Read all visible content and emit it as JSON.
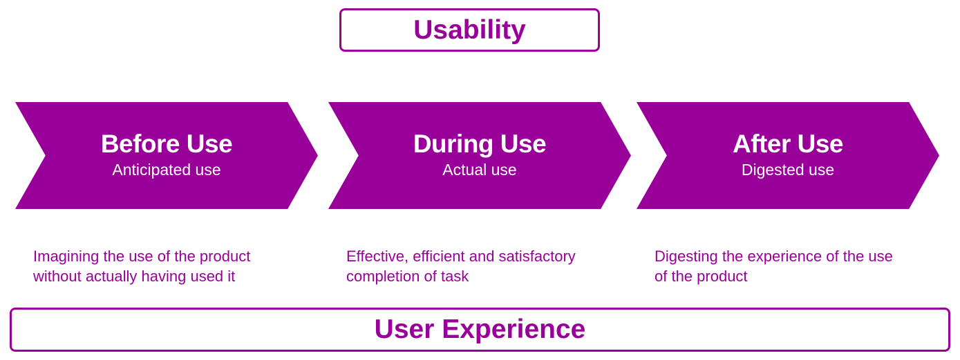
{
  "usability": {
    "label": "Usability"
  },
  "user_experience": {
    "label": "User Experience"
  },
  "phases": [
    {
      "title": "Before Use",
      "subtitle": "Anticipated use",
      "description_lines": [
        "Imagining the use of the product",
        "without actually having used it"
      ]
    },
    {
      "title": "During Use",
      "subtitle": "Actual use",
      "description_lines": [
        "Effective, efficient and satisfactory",
        "completion of task"
      ]
    },
    {
      "title": "After Use",
      "subtitle": "Digested use",
      "description_lines": [
        "Digesting the experience of the use",
        "of the product"
      ]
    }
  ],
  "colors": {
    "accent": "#990099",
    "text_on_accent": "#ffffff",
    "background": "#ffffff"
  }
}
